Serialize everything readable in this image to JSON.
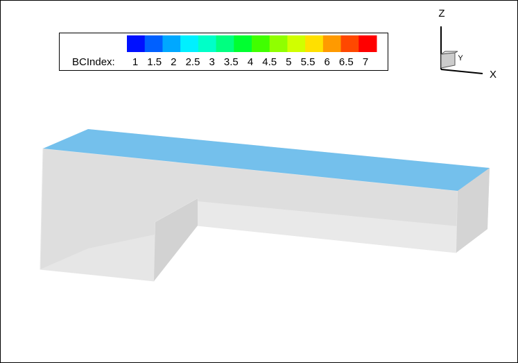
{
  "legend": {
    "title": "BCIndex:",
    "labels": [
      "1",
      "1.5",
      "2",
      "2.5",
      "3",
      "3.5",
      "4",
      "4.5",
      "5",
      "5.5",
      "6",
      "6.5",
      "7"
    ],
    "colors": [
      "#0010ff",
      "#0060ff",
      "#00a8ff",
      "#00f0ff",
      "#00ffc8",
      "#00ff80",
      "#00ff30",
      "#40ff00",
      "#90ff00",
      "#d0ff00",
      "#ffe000",
      "#ff9a00",
      "#ff4800",
      "#ff0000"
    ]
  },
  "axes": {
    "z": "Z",
    "x": "X",
    "y": "Y"
  }
}
